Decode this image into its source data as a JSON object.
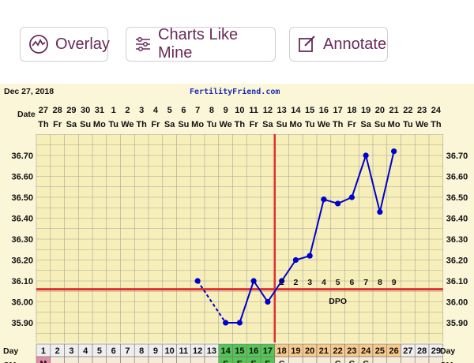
{
  "toolbar": {
    "overlay_label": "Overlay",
    "charts_like_mine_label": "Charts Like Mine",
    "annotate_label": "Annotate",
    "accent_color": "#6a2a5a"
  },
  "chart_header": {
    "date": "Dec 27, 2018",
    "site": "FertilityFriend.com",
    "date_row_label": "Date",
    "day_row_label": "Day",
    "cm_row_label": "CM"
  },
  "chart_data": {
    "type": "line",
    "x_dates": [
      "27",
      "28",
      "29",
      "30",
      "31",
      "1",
      "2",
      "3",
      "4",
      "5",
      "6",
      "7",
      "8",
      "9",
      "10",
      "11",
      "12",
      "13",
      "14",
      "15",
      "16",
      "17",
      "18",
      "19",
      "20",
      "21",
      "22",
      "23",
      "24"
    ],
    "x_weekdays": [
      "Th",
      "Fr",
      "Sa",
      "Su",
      "Mo",
      "Tu",
      "We",
      "Th",
      "Fr",
      "Sa",
      "Su",
      "Mo",
      "Tu",
      "We",
      "Th",
      "Fr",
      "Sa",
      "Su",
      "Mo",
      "Tu",
      "We",
      "Th",
      "Fr",
      "Sa",
      "Su",
      "Mo",
      "Tu",
      "We",
      "Th"
    ],
    "cycle_days": [
      1,
      2,
      3,
      4,
      5,
      6,
      7,
      8,
      9,
      10,
      11,
      12,
      13,
      14,
      15,
      16,
      17,
      18,
      19,
      20,
      21,
      22,
      23,
      24,
      25,
      26,
      27,
      28,
      29
    ],
    "y_ticks": [
      "36.70",
      "36.60",
      "36.50",
      "36.40",
      "36.30",
      "36.20",
      "36.10",
      "36.00",
      "35.90"
    ],
    "ylim": [
      35.8,
      36.8
    ],
    "series": [
      {
        "points": [
          {
            "day": 12,
            "temp": 36.1
          },
          {
            "day": 14,
            "temp": 35.9
          },
          {
            "day": 15,
            "temp": 35.9
          },
          {
            "day": 16,
            "temp": 36.1
          },
          {
            "day": 17,
            "temp": 36.0
          },
          {
            "day": 18,
            "temp": 36.1
          },
          {
            "day": 19,
            "temp": 36.2
          },
          {
            "day": 20,
            "temp": 36.22
          },
          {
            "day": 21,
            "temp": 36.49
          },
          {
            "day": 22,
            "temp": 36.47
          },
          {
            "day": 23,
            "temp": 36.5
          },
          {
            "day": 24,
            "temp": 36.7
          },
          {
            "day": 25,
            "temp": 36.43
          },
          {
            "day": 26,
            "temp": 36.72
          }
        ],
        "color": "#0000cc",
        "dashed_segment": [
          12,
          14
        ]
      }
    ],
    "coverline": 36.06,
    "coverline_color": "#e03030",
    "ovulation_day": 17,
    "dpo_labels": [
      {
        "day": 18,
        "label": "1"
      },
      {
        "day": 19,
        "label": "2"
      },
      {
        "day": 20,
        "label": "3"
      },
      {
        "day": 21,
        "label": "4"
      },
      {
        "day": 22,
        "label": "5"
      },
      {
        "day": 23,
        "label": "6"
      },
      {
        "day": 24,
        "label": "7"
      },
      {
        "day": 25,
        "label": "8"
      },
      {
        "day": 26,
        "label": "9"
      }
    ],
    "dpo_text": "DPO",
    "fertile_days_green": [
      14,
      15,
      16,
      17
    ],
    "luteal_days_orange": [
      18,
      19,
      20,
      21,
      22,
      23,
      24,
      25,
      26
    ],
    "cm_row": [
      {
        "day": 1,
        "label": "M"
      },
      {
        "day": 14,
        "label": "S"
      },
      {
        "day": 15,
        "label": "E"
      },
      {
        "day": 16,
        "label": "E"
      },
      {
        "day": 17,
        "label": "E"
      },
      {
        "day": 18,
        "label": "C"
      },
      {
        "day": 22,
        "label": "C"
      },
      {
        "day": 23,
        "label": "C"
      },
      {
        "day": 24,
        "label": "C"
      }
    ],
    "colors": {
      "plot_bg": "#f7efb9",
      "grid": "#a9a49a",
      "green_day": "#57c457",
      "orange_day": "#f6c98c",
      "period_day": "#e58aa8"
    }
  }
}
